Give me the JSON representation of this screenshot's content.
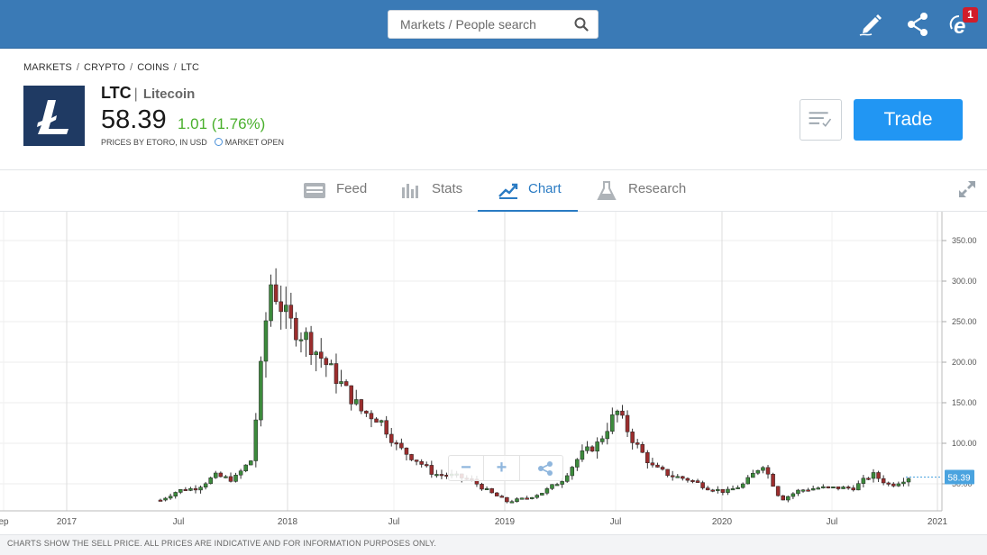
{
  "search": {
    "placeholder": "Markets / People search"
  },
  "topbar": {
    "notification_count": "1",
    "icons": [
      "pencil-icon",
      "share-icon",
      "notifications-icon"
    ]
  },
  "breadcrumb": [
    "MARKETS",
    "CRYPTO",
    "COINS",
    "LTC"
  ],
  "instrument": {
    "symbol": "LTC",
    "name": "Litecoin",
    "price": "58.39",
    "change": "1.01 (1.76%)",
    "prices_by": "PRICES BY ETORO, IN USD",
    "market_status": "MARKET OPEN",
    "change_color": "#4ab02d"
  },
  "actions": {
    "trade_label": "Trade"
  },
  "tabs": [
    {
      "label": "Feed",
      "icon": "feed-icon",
      "active": false
    },
    {
      "label": "Stats",
      "icon": "stats-icon",
      "active": false
    },
    {
      "label": "Chart",
      "icon": "chart-icon",
      "active": true
    },
    {
      "label": "Research",
      "icon": "research-icon",
      "active": false
    }
  ],
  "chart_data": {
    "type": "candlestick",
    "x_labels": [
      "ep",
      "2017",
      "Jul",
      "2018",
      "Jul",
      "2019",
      "Jul",
      "2020",
      "Jul",
      "2021"
    ],
    "y_ticks": [
      "350.00",
      "300.00",
      "250.00",
      "200.00",
      "150.00",
      "100.00",
      "50.00"
    ],
    "ylim": [
      0,
      380
    ],
    "current_value": "58.39",
    "x": [
      "2017-06",
      "2017-07",
      "2017-08",
      "2017-09",
      "2017-10",
      "2017-11",
      "2017-12a",
      "2017-12b",
      "2018-01",
      "2018-02",
      "2018-03",
      "2018-04",
      "2018-05",
      "2018-06",
      "2018-07",
      "2018-08",
      "2018-09",
      "2018-10",
      "2018-11",
      "2018-12",
      "2019-01",
      "2019-02",
      "2019-03",
      "2019-04",
      "2019-05",
      "2019-06",
      "2019-07",
      "2019-08",
      "2019-09",
      "2019-10",
      "2019-11",
      "2019-12",
      "2020-01",
      "2020-02",
      "2020-03",
      "2020-04",
      "2020-05",
      "2020-06",
      "2020-07",
      "2020-08",
      "2020-09",
      "2020-10"
    ],
    "values": [
      30,
      42,
      45,
      60,
      55,
      80,
      300,
      250,
      230,
      200,
      170,
      140,
      130,
      95,
      80,
      62,
      60,
      55,
      40,
      28,
      32,
      40,
      55,
      85,
      100,
      140,
      100,
      70,
      60,
      55,
      45,
      40,
      50,
      75,
      30,
      42,
      45,
      45,
      45,
      62,
      48,
      58.39
    ],
    "grid": true,
    "legend": "none",
    "up_color": "#3c8a3c",
    "down_color": "#9b2d2d"
  },
  "zoom_controls": {
    "minus": "−",
    "plus": "+"
  },
  "footer": {
    "disclaimer": "CHARTS SHOW THE SELL PRICE. ALL PRICES ARE INDICATIVE AND FOR INFORMATION PURPOSES ONLY."
  }
}
